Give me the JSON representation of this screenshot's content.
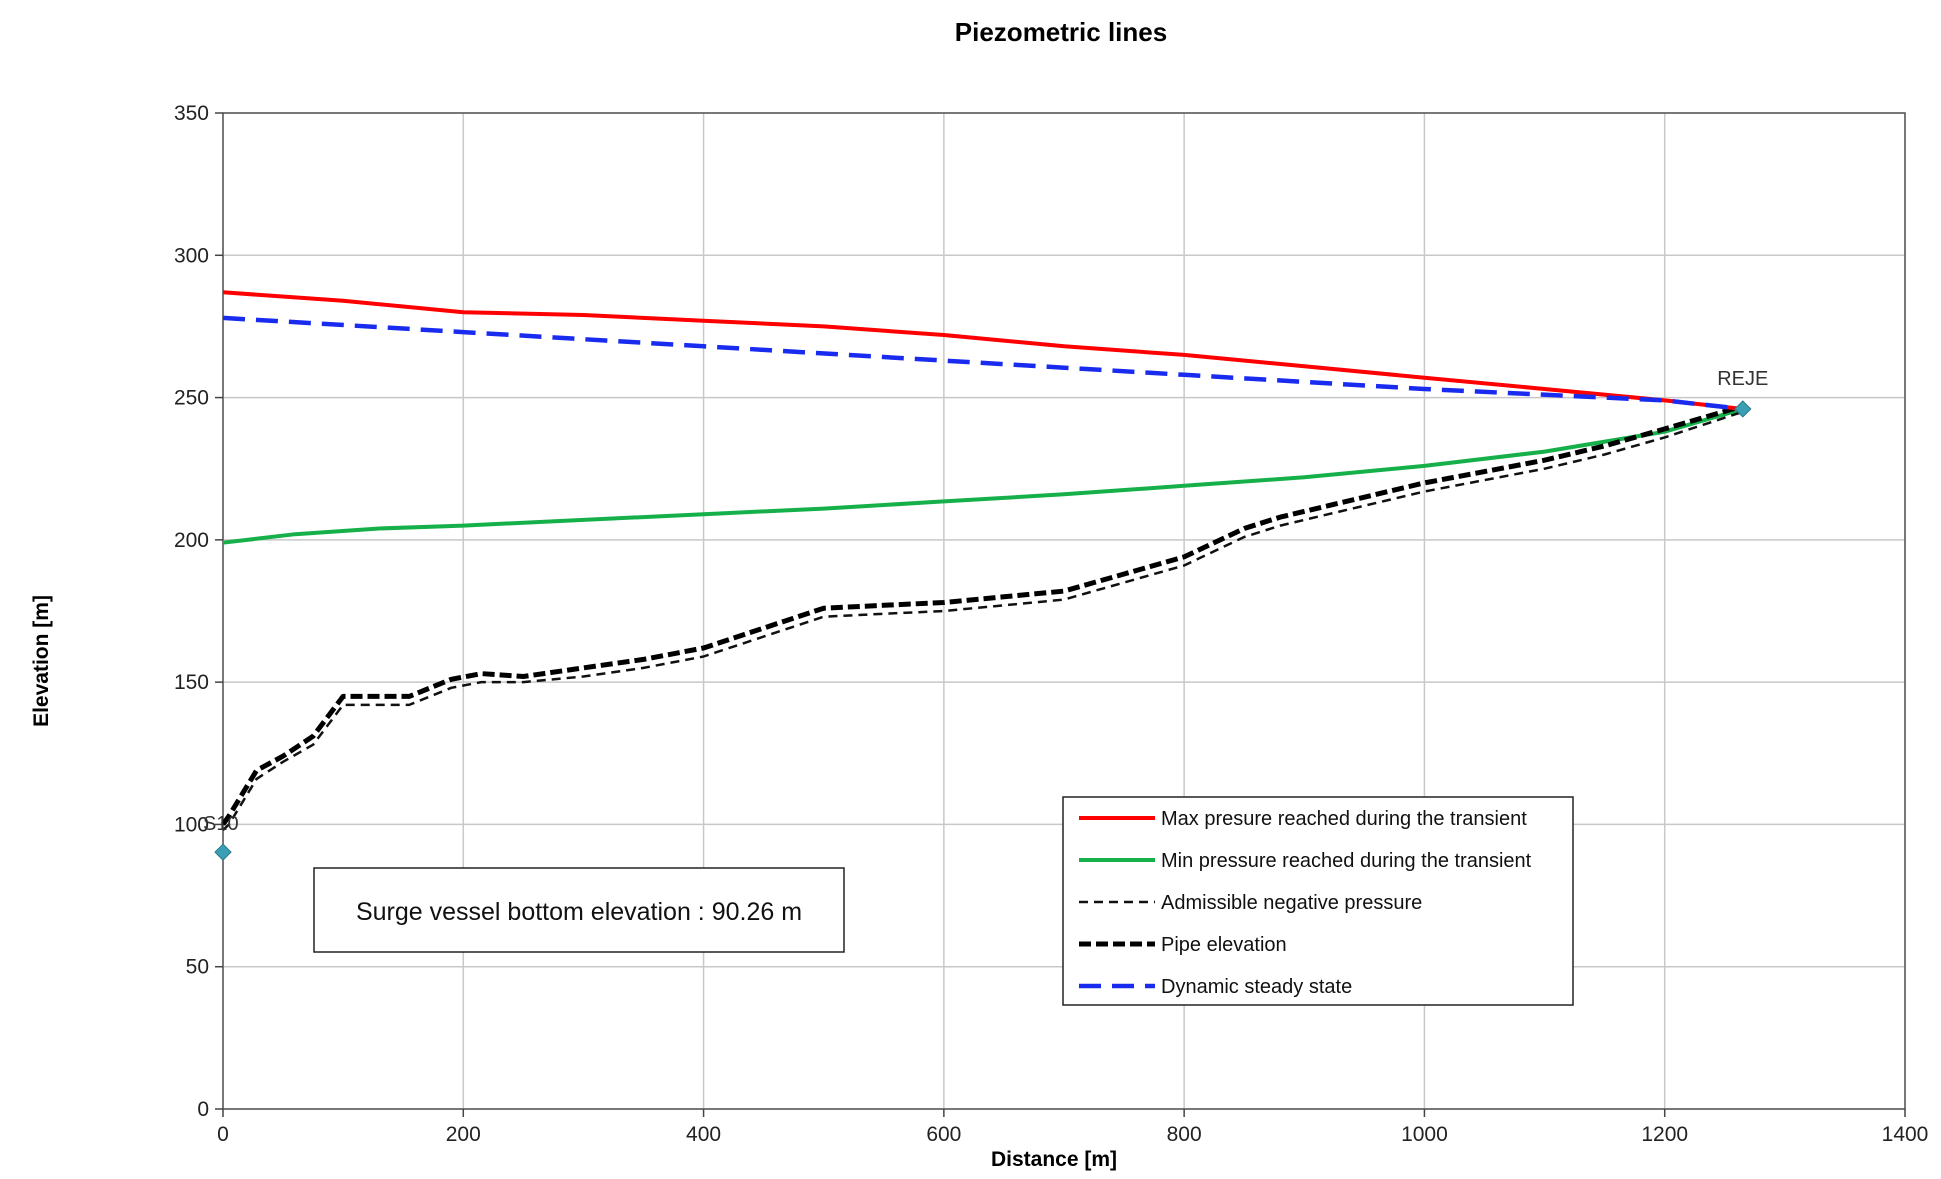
{
  "chart_data": {
    "type": "line",
    "title": "Piezometric lines",
    "xlabel": "Distance [m]",
    "ylabel": "Elevation  [m]",
    "xlim": [
      0,
      1400
    ],
    "ylim": [
      0,
      350
    ],
    "x_ticks": [
      0,
      200,
      400,
      600,
      800,
      1000,
      1200,
      1400
    ],
    "y_ticks": [
      0,
      50,
      100,
      150,
      200,
      250,
      300,
      350
    ],
    "grid": true,
    "legend_position": "bottom-right",
    "series": [
      {
        "name": "Max presure reached during the transient",
        "color": "#ff0000",
        "style": "solid",
        "x": [
          0,
          100,
          200,
          300,
          400,
          500,
          600,
          700,
          800,
          900,
          1000,
          1100,
          1200,
          1265
        ],
        "y": [
          287,
          284,
          280,
          279,
          277,
          275,
          272,
          268,
          265,
          261,
          257,
          253,
          249,
          246
        ]
      },
      {
        "name": "Min pressure reached during the transient",
        "color": "#16b04a",
        "style": "solid",
        "x": [
          0,
          60,
          130,
          200,
          300,
          400,
          500,
          600,
          700,
          800,
          900,
          1000,
          1100,
          1200,
          1265
        ],
        "y": [
          199,
          202,
          204,
          205,
          207,
          209,
          211,
          213.5,
          216,
          219,
          222,
          226,
          231,
          238,
          246
        ]
      },
      {
        "name": "Admissible negative pressure",
        "color": "#111111",
        "style": "thin-dash",
        "x": [
          0,
          5,
          28,
          50,
          75,
          100,
          130,
          155,
          190,
          215,
          250,
          300,
          350,
          400,
          450,
          500,
          550,
          600,
          650,
          700,
          750,
          800,
          850,
          880,
          920,
          960,
          1000,
          1050,
          1100,
          1150,
          1200,
          1265
        ],
        "y": [
          98,
          100,
          116,
          122,
          128,
          142,
          142,
          142,
          148,
          150,
          150,
          152,
          155,
          159,
          166,
          173,
          174,
          175,
          177,
          179,
          185,
          191,
          201,
          205,
          209,
          213,
          217,
          221,
          225,
          230,
          236,
          245
        ]
      },
      {
        "name": "Pipe elevation",
        "color": "#000000",
        "style": "thick-dash",
        "x": [
          0,
          5,
          28,
          50,
          75,
          100,
          130,
          155,
          190,
          215,
          250,
          300,
          350,
          400,
          450,
          500,
          550,
          600,
          650,
          700,
          750,
          800,
          850,
          880,
          920,
          960,
          1000,
          1050,
          1100,
          1150,
          1200,
          1265
        ],
        "y": [
          100,
          103,
          119,
          124,
          131,
          145,
          145,
          145,
          151,
          153,
          152,
          155,
          158,
          162,
          169,
          176,
          177,
          178,
          180,
          182,
          188,
          194,
          204,
          208,
          212,
          216,
          220,
          224,
          228,
          233,
          239,
          247
        ]
      },
      {
        "name": "Dynamic steady state",
        "color": "#1a2bf0",
        "style": "dash",
        "x": [
          0,
          200,
          400,
          600,
          800,
          1000,
          1200,
          1265
        ],
        "y": [
          278,
          273,
          268,
          263,
          258,
          253,
          249,
          246
        ]
      }
    ],
    "markers": [
      {
        "label": "S10",
        "x": 0,
        "y": 90.26,
        "color": "#3a9fb5"
      },
      {
        "label": "REJE",
        "x": 1265,
        "y": 246,
        "color": "#3a9fb5"
      }
    ],
    "annotation": "Surge vessel bottom elevation : 90.26 m"
  }
}
